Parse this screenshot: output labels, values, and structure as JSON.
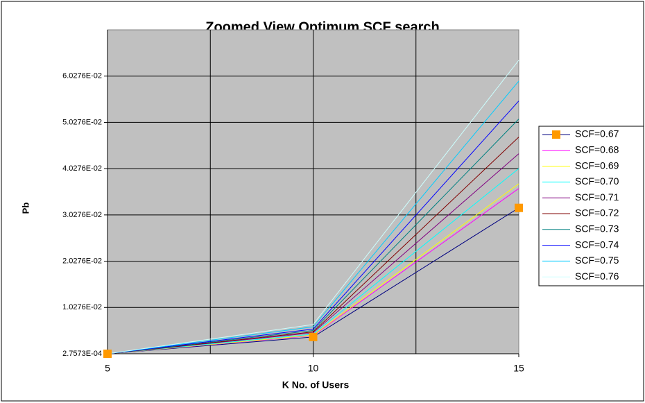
{
  "chart_data": {
    "type": "line",
    "title": "Zoomed View Optimum SCF search",
    "x_label": "K    No. of Users",
    "y_label": "Pb",
    "x": [
      5,
      10,
      15
    ],
    "xlim": [
      5,
      15
    ],
    "xticks": [
      5,
      10,
      15
    ],
    "xgrid": [
      7.5,
      10,
      12.5
    ],
    "ylim": [
      0.00027573,
      0.070276
    ],
    "yticks": [
      {
        "value": 0.00027573,
        "label": "2.7573E-04"
      },
      {
        "value": 0.010276,
        "label": "1.0276E-02"
      },
      {
        "value": 0.020276,
        "label": "2.0276E-02"
      },
      {
        "value": 0.030276,
        "label": "3.0276E-02"
      },
      {
        "value": 0.040276,
        "label": "4.0276E-02"
      },
      {
        "value": 0.050276,
        "label": "5.0276E-02"
      },
      {
        "value": 0.060276,
        "label": "6.0276E-02"
      }
    ],
    "grid": true,
    "plot_background": "#c0c0c0",
    "legend": "right",
    "series": [
      {
        "name": "SCF=0.67",
        "color": "#000080",
        "marker": "square",
        "marker_color": "#ff9900",
        "values": [
          0.00027573,
          0.0039,
          0.0318
        ]
      },
      {
        "name": "SCF=0.68",
        "color": "#ff00ff",
        "values": [
          0.00027573,
          0.0042,
          0.036
        ]
      },
      {
        "name": "SCF=0.69",
        "color": "#ffff00",
        "values": [
          0.00027573,
          0.0043,
          0.037
        ]
      },
      {
        "name": "SCF=0.70",
        "color": "#00ffff",
        "values": [
          0.00027573,
          0.0045,
          0.0403
        ]
      },
      {
        "name": "SCF=0.71",
        "color": "#800080",
        "values": [
          0.00027573,
          0.0048,
          0.0435
        ]
      },
      {
        "name": "SCF=0.72",
        "color": "#800000",
        "values": [
          0.00027573,
          0.005,
          0.0471
        ]
      },
      {
        "name": "SCF=0.73",
        "color": "#008080",
        "values": [
          0.00027573,
          0.0053,
          0.051
        ]
      },
      {
        "name": "SCF=0.74",
        "color": "#0000ff",
        "values": [
          0.00027573,
          0.0056,
          0.0549
        ]
      },
      {
        "name": "SCF=0.75",
        "color": "#00ccff",
        "values": [
          0.00027573,
          0.0061,
          0.0592
        ]
      },
      {
        "name": "SCF=0.76",
        "color": "#ccffff",
        "values": [
          0.00027573,
          0.0066,
          0.0637
        ]
      }
    ]
  }
}
